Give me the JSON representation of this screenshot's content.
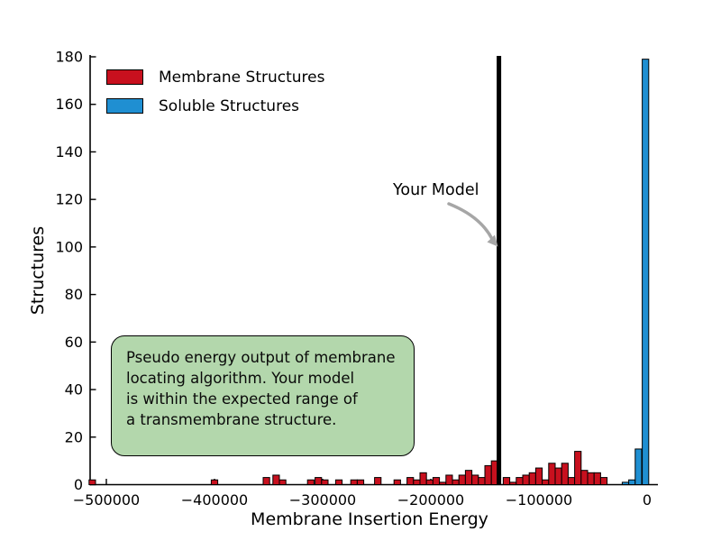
{
  "chart_data": {
    "type": "bar",
    "subtype": "histogram",
    "title": "",
    "xlabel": "Membrane Insertion Energy",
    "ylabel": "Structures",
    "xlim": [
      -515000,
      10000
    ],
    "ylim": [
      0,
      180
    ],
    "grid": false,
    "background": "#ffffff",
    "legend_position": "upper left",
    "x_ticks": [
      -500000,
      -400000,
      -300000,
      -200000,
      -100000,
      0
    ],
    "x_tick_labels": [
      "−500000",
      "−400000",
      "−300000",
      "−200000",
      "−100000",
      "0"
    ],
    "y_ticks": [
      0,
      20,
      40,
      60,
      80,
      100,
      120,
      140,
      160,
      180
    ],
    "bin_width": 6000,
    "series": [
      {
        "name": "Membrane Structures",
        "color": "#c8101e",
        "edge_color": "#000000",
        "points": [
          [
            -513000,
            2
          ],
          [
            -400000,
            2
          ],
          [
            -352000,
            3
          ],
          [
            -343000,
            4
          ],
          [
            -337000,
            2
          ],
          [
            -311000,
            2
          ],
          [
            -304000,
            3
          ],
          [
            -298000,
            2
          ],
          [
            -285000,
            2
          ],
          [
            -271000,
            2
          ],
          [
            -265000,
            2
          ],
          [
            -249000,
            3
          ],
          [
            -231000,
            2
          ],
          [
            -219000,
            3
          ],
          [
            -213000,
            2
          ],
          [
            -207000,
            5
          ],
          [
            -201000,
            2
          ],
          [
            -195000,
            3
          ],
          [
            -189000,
            1
          ],
          [
            -183000,
            4
          ],
          [
            -177000,
            2
          ],
          [
            -171000,
            4
          ],
          [
            -165000,
            6
          ],
          [
            -159000,
            4
          ],
          [
            -153000,
            3
          ],
          [
            -147000,
            8
          ],
          [
            -141000,
            10
          ],
          [
            -130000,
            3
          ],
          [
            -124000,
            1
          ],
          [
            -118000,
            3
          ],
          [
            -112000,
            4
          ],
          [
            -106000,
            5
          ],
          [
            -100000,
            7
          ],
          [
            -94000,
            2
          ],
          [
            -88000,
            9
          ],
          [
            -82000,
            7
          ],
          [
            -76000,
            9
          ],
          [
            -70000,
            3
          ],
          [
            -64000,
            14
          ],
          [
            -58000,
            6
          ],
          [
            -52000,
            5
          ],
          [
            -46000,
            5
          ],
          [
            -40000,
            3
          ]
        ]
      },
      {
        "name": "Soluble Structures",
        "color": "#1f8fd2",
        "edge_color": "#000000",
        "points": [
          [
            -20000,
            1
          ],
          [
            -14000,
            2
          ],
          [
            -8000,
            15
          ],
          [
            -1500,
            179
          ]
        ]
      }
    ],
    "model_line": {
      "x": -137000,
      "label": "Your Model",
      "color": "#000000"
    },
    "arrow": {
      "color": "#a6a6a6"
    },
    "annotation": {
      "lines": [
        "Pseudo energy output of membrane",
        "locating algorithm. Your model",
        "is within the expected range of",
        "a transmembrane structure."
      ],
      "fill": "#b3d7ac",
      "border": "#000000"
    }
  }
}
